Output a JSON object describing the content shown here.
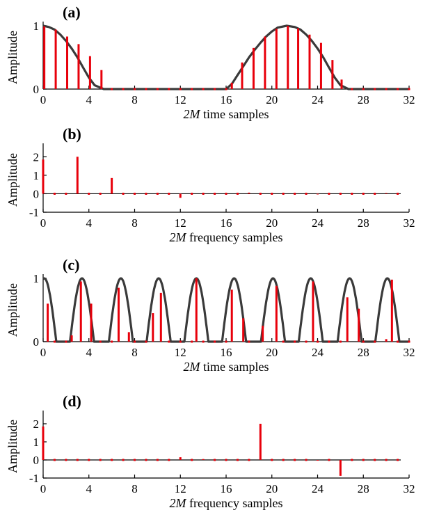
{
  "colors": {
    "stem": "#e8000b",
    "curve": "#3a3a3a",
    "axis": "#000000"
  },
  "chart_data": [
    {
      "panel": "(a)",
      "type": "stem",
      "xlabel_var": "2M",
      "xlabel_rest": " time samples",
      "ylabel": "Amplitude",
      "xlim": [
        0,
        32
      ],
      "ylim": [
        0,
        1
      ],
      "xticks": [
        "0",
        "4",
        "8",
        "12",
        "16",
        "20",
        "24",
        "28",
        "32"
      ],
      "yticks": [
        {
          "v": 0,
          "label": "0"
        },
        {
          "v": 1,
          "label": "1"
        }
      ],
      "curve": [
        [
          0,
          1
        ],
        [
          0.5,
          0.98
        ],
        [
          1,
          0.94
        ],
        [
          1.5,
          0.86
        ],
        [
          2,
          0.76
        ],
        [
          2.5,
          0.64
        ],
        [
          3,
          0.5
        ],
        [
          3.5,
          0.34
        ],
        [
          4,
          0.18
        ],
        [
          4.5,
          0.06
        ],
        [
          5.3,
          0
        ],
        [
          16,
          0
        ],
        [
          16.5,
          0.08
        ],
        [
          17,
          0.22
        ],
        [
          17.5,
          0.36
        ],
        [
          18,
          0.5
        ],
        [
          18.5,
          0.62
        ],
        [
          19,
          0.73
        ],
        [
          19.5,
          0.83
        ],
        [
          20,
          0.91
        ],
        [
          20.5,
          0.97
        ],
        [
          21.3,
          1
        ],
        [
          22,
          0.98
        ],
        [
          22.5,
          0.94
        ],
        [
          23,
          0.86
        ],
        [
          23.5,
          0.76
        ],
        [
          24,
          0.64
        ],
        [
          24.5,
          0.5
        ],
        [
          25,
          0.34
        ],
        [
          25.5,
          0.18
        ],
        [
          26,
          0.06
        ],
        [
          26.7,
          0
        ],
        [
          32,
          0
        ]
      ],
      "stems": [
        [
          0.1,
          0.99
        ],
        [
          1.1,
          0.94
        ],
        [
          2.1,
          0.83
        ],
        [
          3.1,
          0.71
        ],
        [
          4.1,
          0.52
        ],
        [
          5.1,
          0.3
        ],
        [
          6,
          0
        ],
        [
          7,
          0
        ],
        [
          8,
          0
        ],
        [
          9,
          0
        ],
        [
          10,
          0
        ],
        [
          11,
          0
        ],
        [
          12,
          0
        ],
        [
          13,
          0
        ],
        [
          14,
          0
        ],
        [
          15,
          0
        ],
        [
          16,
          0
        ],
        [
          16.5,
          0.1
        ],
        [
          17.4,
          0.42
        ],
        [
          18.4,
          0.65
        ],
        [
          19.4,
          0.83
        ],
        [
          20.4,
          0.95
        ],
        [
          21.4,
          1
        ],
        [
          22.3,
          0.96
        ],
        [
          23.3,
          0.86
        ],
        [
          24.3,
          0.73
        ],
        [
          25.3,
          0.46
        ],
        [
          26.1,
          0.15
        ],
        [
          27,
          0
        ],
        [
          28,
          0
        ],
        [
          29,
          0
        ],
        [
          30,
          0
        ],
        [
          31,
          0
        ],
        [
          32,
          0
        ]
      ]
    },
    {
      "panel": "(b)",
      "type": "stem",
      "xlabel_var": "2M",
      "xlabel_rest": " frequency samples",
      "ylabel": "Amplitude",
      "xlim": [
        0,
        32
      ],
      "ylim": [
        -1,
        2.5
      ],
      "xticks": [
        "0",
        "4",
        "8",
        "12",
        "16",
        "20",
        "24",
        "28",
        "32"
      ],
      "yticks": [
        {
          "v": -1,
          "label": "-1"
        },
        {
          "v": 0,
          "label": "0"
        },
        {
          "v": 1,
          "label": "1"
        },
        {
          "v": 2,
          "label": "2"
        }
      ],
      "curve": [],
      "stems": [
        [
          0,
          1.85
        ],
        [
          1,
          0
        ],
        [
          2,
          0
        ],
        [
          3,
          2.0
        ],
        [
          4,
          0
        ],
        [
          5,
          0
        ],
        [
          6,
          0.85
        ],
        [
          7,
          0
        ],
        [
          8,
          0
        ],
        [
          9,
          0
        ],
        [
          10,
          0
        ],
        [
          11,
          0
        ],
        [
          12,
          -0.22
        ],
        [
          13,
          0
        ],
        [
          14,
          0
        ],
        [
          15,
          0
        ],
        [
          16,
          0
        ],
        [
          17,
          0
        ],
        [
          18,
          0.06
        ],
        [
          19,
          0
        ],
        [
          20,
          0
        ],
        [
          21,
          0
        ],
        [
          22,
          0
        ],
        [
          23,
          0
        ],
        [
          24,
          -0.04
        ],
        [
          25,
          0
        ],
        [
          26,
          0
        ],
        [
          27,
          0
        ],
        [
          28,
          0
        ],
        [
          29,
          0
        ],
        [
          30,
          0.04
        ],
        [
          31,
          0
        ]
      ]
    },
    {
      "panel": "(c)",
      "type": "stem",
      "xlabel_var": "2M",
      "xlabel_rest": " time samples",
      "ylabel": "Amplitude",
      "xlim": [
        0,
        32
      ],
      "ylim": [
        0,
        1
      ],
      "xticks": [
        "0",
        "4",
        "8",
        "12",
        "16",
        "20",
        "24",
        "28",
        "32"
      ],
      "yticks": [
        {
          "v": 0,
          "label": "0"
        },
        {
          "v": 1,
          "label": "1"
        }
      ],
      "curve": [],
      "stems": [
        [
          0.4,
          0.6
        ],
        [
          1,
          0
        ],
        [
          2,
          0
        ],
        [
          2.5,
          0.1
        ],
        [
          3.3,
          0.95
        ],
        [
          4.2,
          0.6
        ],
        [
          5,
          0
        ],
        [
          6,
          0
        ],
        [
          6.6,
          0.85
        ],
        [
          7.5,
          0.15
        ],
        [
          8,
          0
        ],
        [
          9,
          0
        ],
        [
          9.6,
          0.45
        ],
        [
          10.3,
          0.77
        ],
        [
          11,
          0
        ],
        [
          12,
          0
        ],
        [
          13,
          0
        ],
        [
          13.4,
          1.0
        ],
        [
          14,
          0
        ],
        [
          15,
          0
        ],
        [
          16,
          0
        ],
        [
          16.5,
          0.82
        ],
        [
          17.5,
          0.37
        ],
        [
          18,
          0
        ],
        [
          19.2,
          0.25
        ],
        [
          20.4,
          0.88
        ],
        [
          21,
          0
        ],
        [
          22,
          0
        ],
        [
          23,
          0
        ],
        [
          23.6,
          0.95
        ],
        [
          24,
          0
        ],
        [
          25,
          0
        ],
        [
          26,
          0
        ],
        [
          26.6,
          0.7
        ],
        [
          27.6,
          0.52
        ],
        [
          28,
          0
        ],
        [
          29,
          0
        ],
        [
          30,
          0.04
        ],
        [
          30.5,
          0.98
        ],
        [
          31,
          0
        ],
        [
          32,
          0
        ]
      ]
    },
    {
      "panel": "(d)",
      "type": "stem",
      "xlabel_var": "2M",
      "xlabel_rest": " frequency samples",
      "ylabel": "Amplitude",
      "xlim": [
        0,
        32
      ],
      "ylim": [
        -1,
        2.5
      ],
      "xticks": [
        "0",
        "4",
        "8",
        "12",
        "16",
        "20",
        "24",
        "28",
        "32"
      ],
      "yticks": [
        {
          "v": -1,
          "label": "-1"
        },
        {
          "v": 0,
          "label": "0"
        },
        {
          "v": 1,
          "label": "1"
        },
        {
          "v": 2,
          "label": "2"
        }
      ],
      "curve": [],
      "stems": [
        [
          0,
          1.85
        ],
        [
          1,
          0
        ],
        [
          2,
          0
        ],
        [
          3,
          0
        ],
        [
          4,
          0
        ],
        [
          5,
          0
        ],
        [
          6,
          0
        ],
        [
          7,
          0
        ],
        [
          8,
          0
        ],
        [
          9,
          0
        ],
        [
          10,
          0
        ],
        [
          11,
          0
        ],
        [
          12,
          0.15
        ],
        [
          13,
          0
        ],
        [
          14,
          0.05
        ],
        [
          15,
          0
        ],
        [
          16,
          0
        ],
        [
          17,
          0
        ],
        [
          18,
          0
        ],
        [
          19,
          2.0
        ],
        [
          20,
          0
        ],
        [
          21,
          0
        ],
        [
          22,
          0
        ],
        [
          23,
          0
        ],
        [
          24,
          -0.04
        ],
        [
          25,
          0
        ],
        [
          26,
          -0.88
        ],
        [
          27,
          0
        ],
        [
          28,
          0
        ],
        [
          29,
          0
        ],
        [
          30,
          0
        ],
        [
          31,
          0
        ]
      ]
    }
  ]
}
